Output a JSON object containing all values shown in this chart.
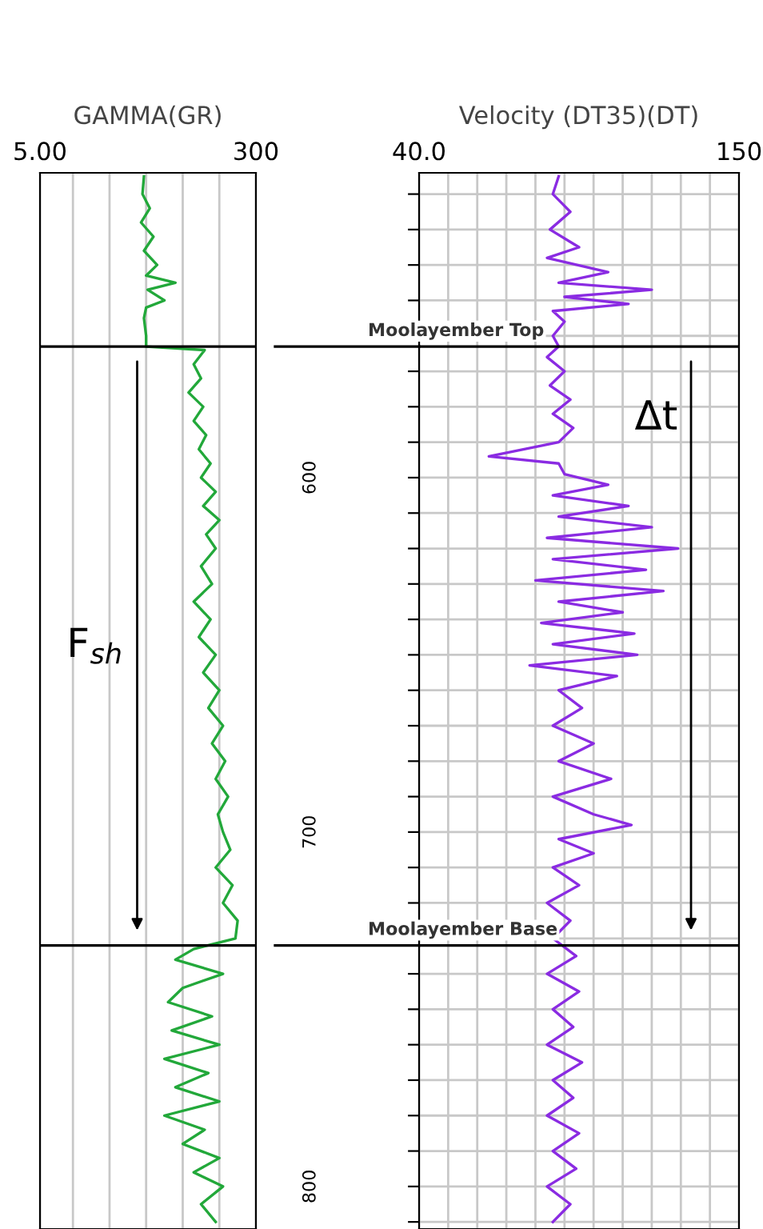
{
  "chart_data": [
    {
      "type": "line",
      "title": "GAMMA(GR)",
      "xlim": [
        5,
        300
      ],
      "xticks": [
        {
          "value": 5,
          "label": "5.00"
        },
        {
          "value": 50,
          "label": null
        },
        {
          "value": 100,
          "label": null
        },
        {
          "value": 150,
          "label": null
        },
        {
          "value": 200,
          "label": null
        },
        {
          "value": 250,
          "label": null
        },
        300
      ],
      "ylim": [
        812,
        514
      ],
      "tick_labels": "x",
      "grid": true,
      "series": [
        {
          "color": "#22a83a",
          "x": [
            147,
            145,
            155,
            143,
            160,
            147,
            165,
            150,
            190,
            152,
            175,
            150,
            147,
            150,
            150,
            230,
            215,
            225,
            208,
            228,
            215,
            232,
            222,
            238,
            225,
            245,
            228,
            250,
            232,
            245,
            225,
            240,
            215,
            238,
            222,
            245,
            228,
            250,
            235,
            255,
            240,
            258,
            245,
            262,
            248,
            255,
            265,
            245,
            268,
            255,
            275,
            272,
            215,
            190,
            255,
            200,
            180,
            240,
            185,
            250,
            175,
            235,
            190,
            250,
            175,
            230,
            200,
            250,
            215,
            255,
            225,
            245
          ],
          "values": [
            515,
            520,
            524,
            528,
            532,
            536,
            540,
            543,
            545,
            547,
            550,
            552,
            555,
            560,
            563,
            564,
            568,
            572,
            576,
            580,
            584,
            588,
            592,
            596,
            600,
            604,
            608,
            612,
            616,
            620,
            625,
            630,
            635,
            640,
            645,
            650,
            655,
            660,
            665,
            670,
            675,
            680,
            685,
            690,
            695,
            700,
            705,
            710,
            715,
            720,
            725,
            730,
            733,
            736,
            740,
            744,
            748,
            752,
            756,
            760,
            764,
            768,
            772,
            776,
            780,
            784,
            788,
            792,
            796,
            800,
            805,
            810
          ]
        }
      ],
      "ref_lines": [
        {
          "axis": "y",
          "value": 563,
          "color": "#000000"
        },
        {
          "axis": "y",
          "value": 732,
          "color": "#000000"
        }
      ],
      "annotations": [
        "F$_{sh}$"
      ]
    },
    {
      "type": "line",
      "title": "Velocity (DT35)(DT)",
      "xlim": [
        40,
        150
      ],
      "xticks": [
        {
          "value": 40,
          "label": "40.0"
        },
        {
          "value": 50,
          "label": null
        },
        {
          "value": 60,
          "label": null
        },
        {
          "value": 70,
          "label": null
        },
        {
          "value": 80,
          "label": null
        },
        {
          "value": 90,
          "label": null
        },
        {
          "value": 100,
          "label": null
        },
        {
          "value": 110,
          "label": null
        },
        {
          "value": 120,
          "label": null
        },
        {
          "value": 130,
          "label": null
        },
        {
          "value": 140,
          "label": null
        },
        150
      ],
      "ylim": [
        812,
        514
      ],
      "yticks": [
        {
          "value": 520,
          "label": null
        },
        {
          "value": 530,
          "label": null
        },
        {
          "value": 540,
          "label": null
        },
        {
          "value": 550,
          "label": null
        },
        {
          "value": 560,
          "label": null
        },
        {
          "value": 570,
          "label": null
        },
        {
          "value": 580,
          "label": null
        },
        {
          "value": 590,
          "label": null
        },
        600,
        {
          "value": 610,
          "label": null
        },
        {
          "value": 620,
          "label": null
        },
        {
          "value": 630,
          "label": null
        },
        {
          "value": 640,
          "label": null
        },
        {
          "value": 650,
          "label": null
        },
        {
          "value": 660,
          "label": null
        },
        {
          "value": 670,
          "label": null
        },
        {
          "value": 680,
          "label": null
        },
        {
          "value": 690,
          "label": null
        },
        700,
        {
          "value": 710,
          "label": null
        },
        {
          "value": 720,
          "label": null
        },
        {
          "value": 730,
          "label": null
        },
        {
          "value": 740,
          "label": null
        },
        {
          "value": 750,
          "label": null
        },
        {
          "value": 760,
          "label": null
        },
        {
          "value": 770,
          "label": null
        },
        {
          "value": 780,
          "label": null
        },
        {
          "value": 790,
          "label": null
        },
        800,
        {
          "value": 810,
          "label": null
        }
      ],
      "grid": true,
      "series": [
        {
          "color": "#8a2be2",
          "x": [
            88,
            86,
            92,
            85,
            95,
            84,
            105,
            88,
            120,
            90,
            112,
            86,
            90,
            86,
            88,
            84,
            90,
            85,
            92,
            86,
            93,
            88,
            64,
            88,
            90,
            105,
            86,
            112,
            88,
            120,
            84,
            129,
            86,
            118,
            80,
            124,
            88,
            110,
            82,
            114,
            86,
            115,
            78,
            108,
            88,
            96,
            86,
            100,
            88,
            106,
            86,
            100,
            113,
            88,
            100,
            86,
            95,
            84,
            92,
            86,
            94,
            84,
            95,
            86,
            93,
            84,
            96,
            86,
            93,
            84,
            95,
            86,
            94,
            84,
            92,
            86
          ],
          "values": [
            515,
            520,
            525,
            530,
            535,
            538,
            542,
            545,
            547,
            549,
            551,
            553,
            556,
            560,
            563,
            566,
            570,
            574,
            578,
            582,
            586,
            590,
            594,
            596,
            599,
            602,
            605,
            608,
            611,
            614,
            617,
            620,
            623,
            626,
            629,
            632,
            635,
            638,
            641,
            644,
            647,
            650,
            653,
            656,
            660,
            665,
            670,
            675,
            680,
            685,
            690,
            695,
            698,
            702,
            706,
            710,
            715,
            720,
            725,
            730,
            735,
            740,
            745,
            750,
            755,
            760,
            765,
            770,
            775,
            780,
            785,
            790,
            795,
            800,
            805,
            810
          ]
        }
      ],
      "ref_lines": [
        {
          "axis": "y",
          "value": 563,
          "label": "Moolayember Top",
          "color": "#000000"
        },
        {
          "axis": "y",
          "value": 732,
          "label": "Moolayember Base",
          "color": "#000000"
        }
      ],
      "annotations": [
        "Δt"
      ]
    }
  ]
}
